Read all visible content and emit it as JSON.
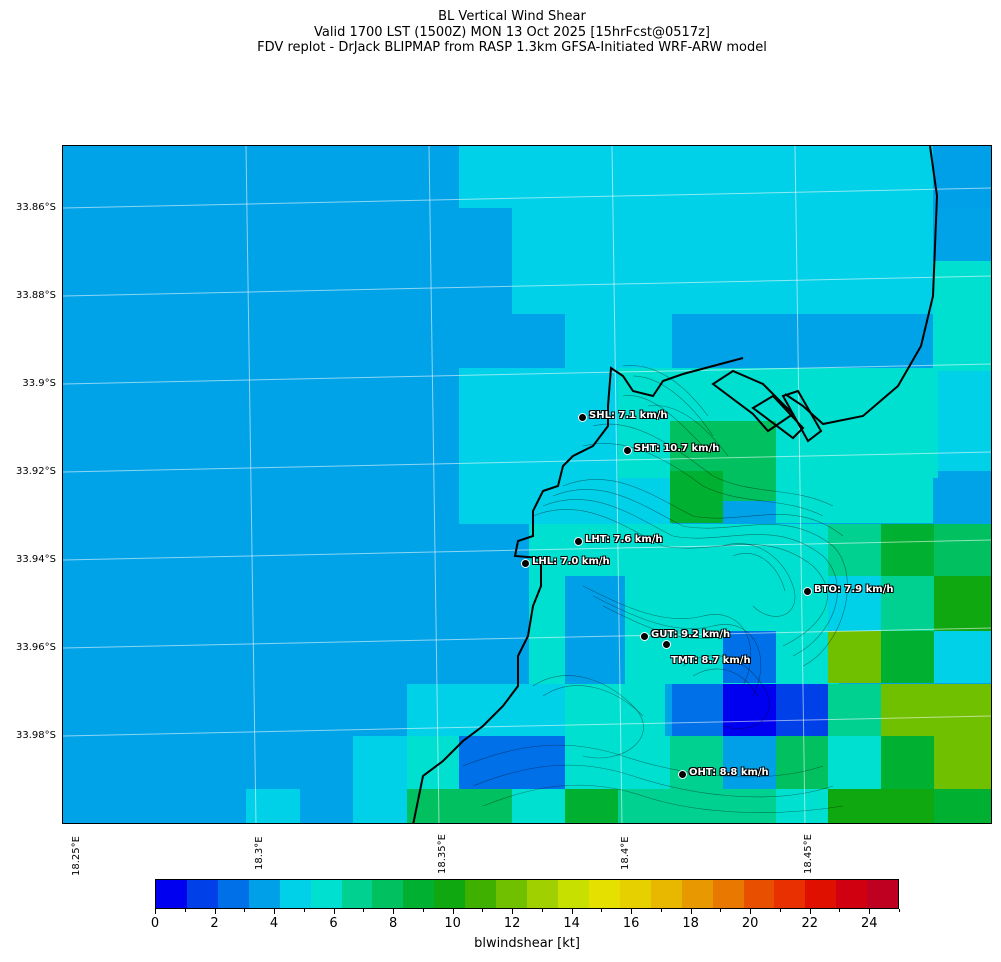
{
  "header": {
    "line1": "BL Vertical Wind Shear",
    "line2": "Valid 1700 LST (1500Z) MON 13 Oct 2025 [15hrFcst@0517z]",
    "line3": "FDV replot - DrJack BLIPMAP from RASP 1.3km GFSA-Initiated WRF-ARW model"
  },
  "axes": {
    "lat_labels": [
      "33.86°S",
      "33.88°S",
      "33.9°S",
      "33.92°S",
      "33.94°S",
      "33.96°S",
      "33.98°S"
    ],
    "lon_labels": [
      "18.25°E",
      "18.3°E",
      "18.35°E",
      "18.4°E",
      "18.45°E"
    ]
  },
  "stations": [
    {
      "code": "SHL",
      "label": "SHL: 7.1 km/h",
      "value_kmh": 7.1
    },
    {
      "code": "SHT",
      "label": "SHT: 10.7 km/h",
      "value_kmh": 10.7
    },
    {
      "code": "LHT",
      "label": "LHT: 7.6 km/h",
      "value_kmh": 7.6
    },
    {
      "code": "LHL",
      "label": "LHL: 7.0 km/h",
      "value_kmh": 7.0
    },
    {
      "code": "BTO",
      "label": "BTO: 7.9 km/h",
      "value_kmh": 7.9
    },
    {
      "code": "GUT",
      "label": "GUT: 9.2 km/h",
      "value_kmh": 9.2
    },
    {
      "code": "TMT",
      "label": "TMT: 8.7 km/h",
      "value_kmh": 8.7
    },
    {
      "code": "OHT",
      "label": "OHT: 8.8 km/h",
      "value_kmh": 8.8
    }
  ],
  "colorbar": {
    "label": "blwindshear [kt]",
    "tick_labels": [
      "0",
      "2",
      "4",
      "6",
      "8",
      "10",
      "12",
      "14",
      "16",
      "18",
      "20",
      "22",
      "24"
    ],
    "range": [
      0,
      25
    ],
    "colors": [
      "#0000f0",
      "#0040e8",
      "#0070e8",
      "#00a0e8",
      "#00d0e8",
      "#00e0d0",
      "#00d090",
      "#00c060",
      "#00b030",
      "#10a810",
      "#40b000",
      "#70c000",
      "#a0d000",
      "#c8e000",
      "#e6e000",
      "#e6d000",
      "#e8b800",
      "#e89800",
      "#e87800",
      "#e85000",
      "#e83000",
      "#e01000",
      "#d00010",
      "#c00020"
    ]
  }
}
